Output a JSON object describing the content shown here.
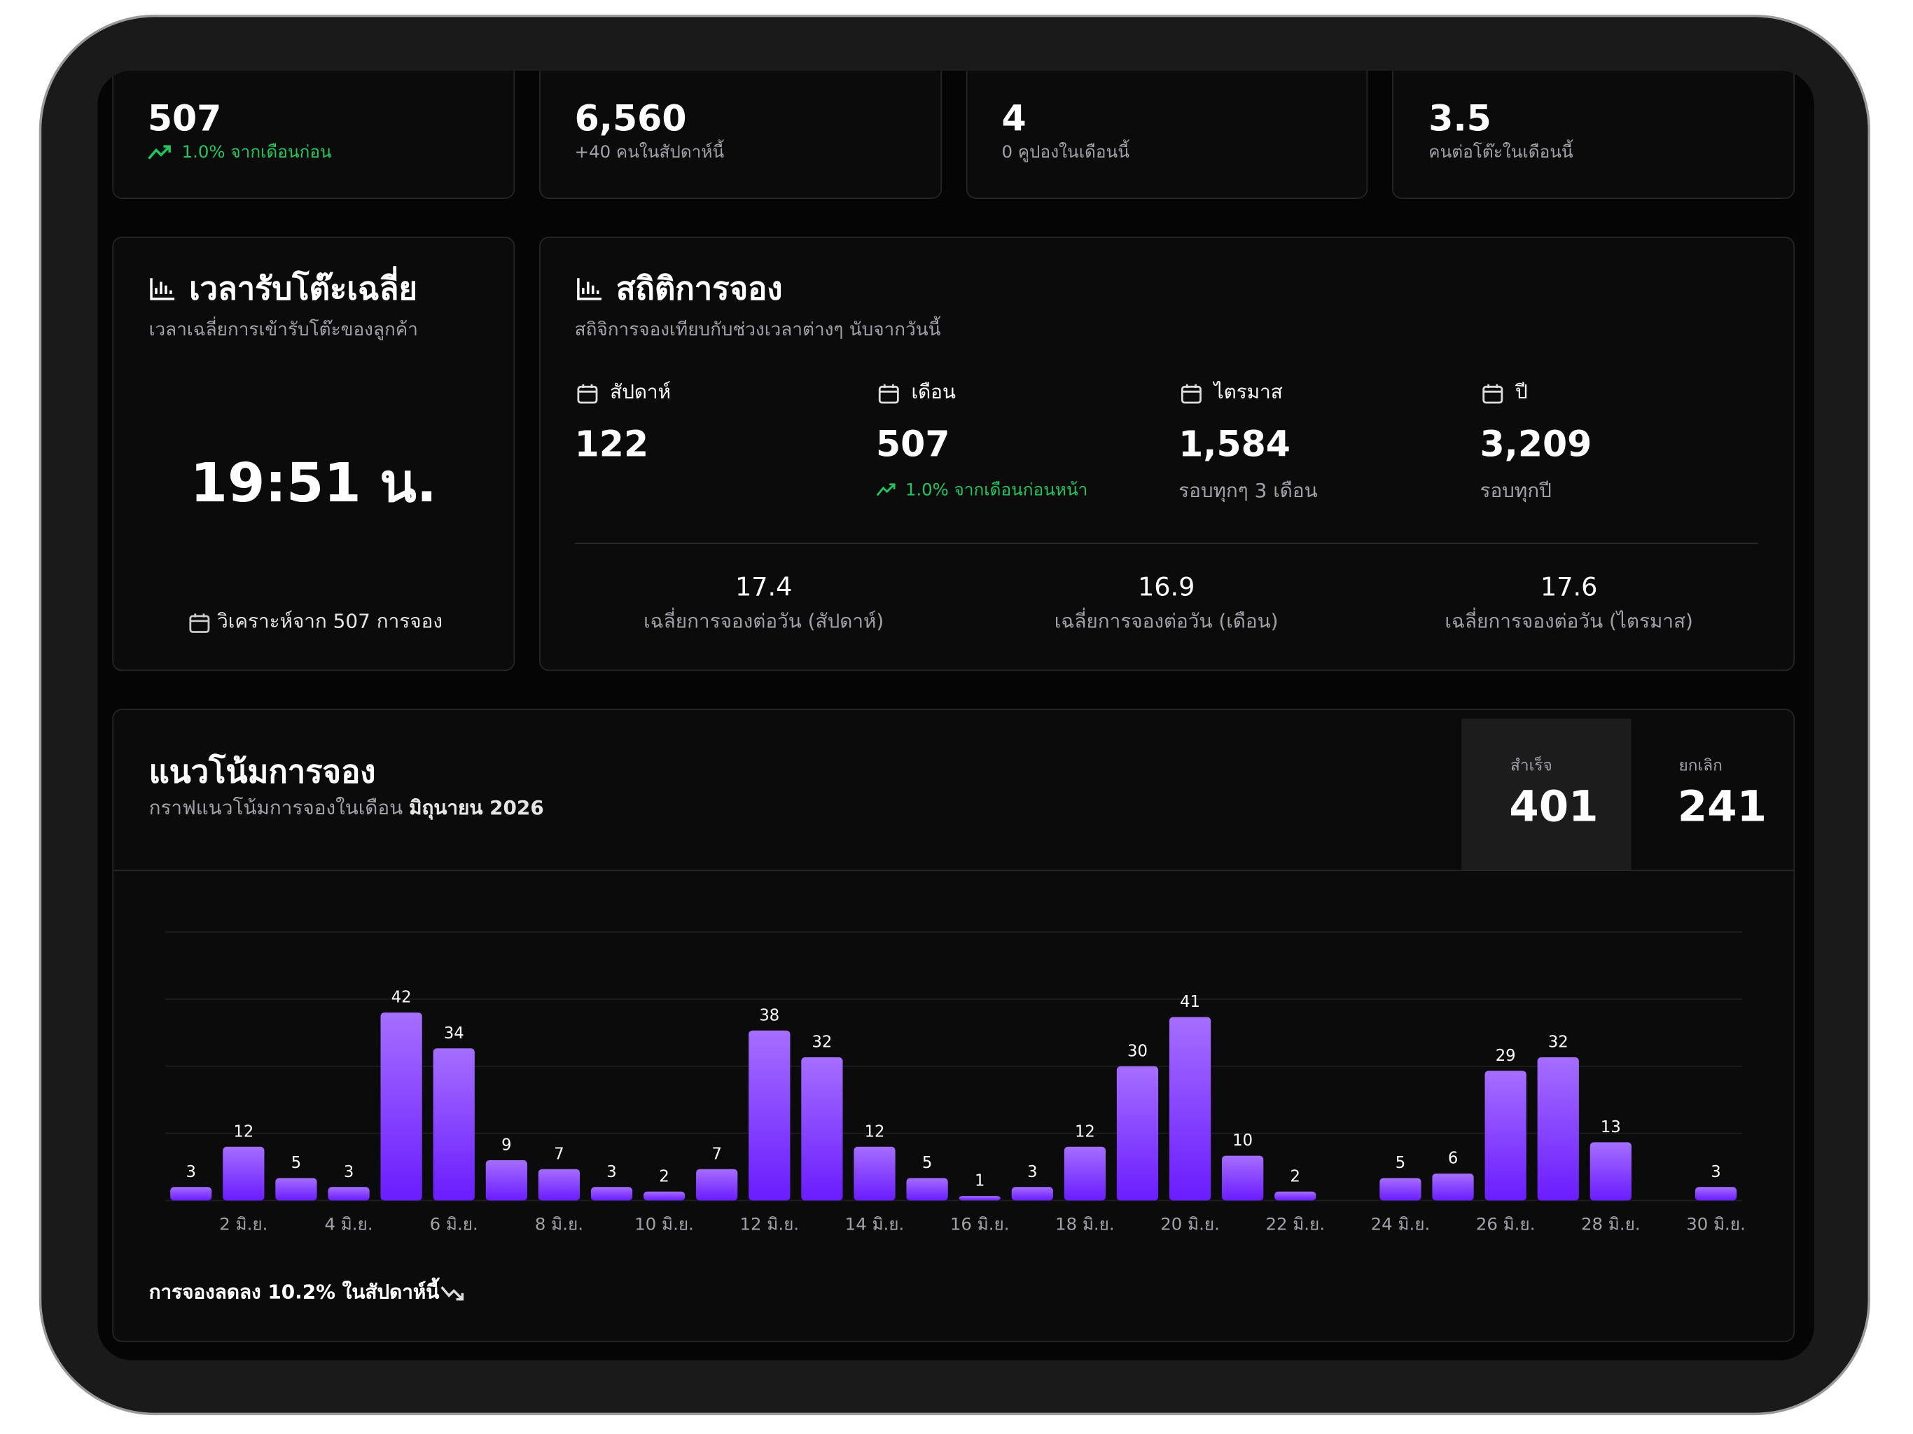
{
  "stat_cards": [
    {
      "value": "507",
      "note": "1.0% จากเดือนก่อน"
    },
    {
      "value": "6,560",
      "note": "+40 คนในสัปดาห์นี้"
    },
    {
      "value": "4",
      "note": "0 คูปองในเดือนนี้"
    },
    {
      "value": "3.5",
      "note": "คนต่อโต๊ะในเดือนนี้"
    }
  ],
  "avg_time": {
    "title": "เวลารับโต๊ะเฉลี่ย",
    "subtitle": "เวลาเฉลี่ยการเข้ารับโต๊ะของลูกค้า",
    "value": "19:51 น.",
    "footer": "วิเคราะห์จาก 507 การจอง"
  },
  "booking_stats": {
    "title": "สถิติการจอง",
    "subtitle": "สถิจิการจองเทียบกับช่วงเวลาต่างๆ นับจากวันนี้",
    "periods": [
      {
        "label": "สัปดาห์",
        "value": "122"
      },
      {
        "label": "เดือน",
        "value": "507",
        "note": "1.0% จากเดือนก่อนหน้า"
      },
      {
        "label": "ไตรมาส",
        "value": "1,584",
        "note": "รอบทุกๆ 3 เดือน"
      },
      {
        "label": "ปี",
        "value": "3,209",
        "note": "รอบทุกปี"
      }
    ],
    "averages": [
      {
        "value": "17.4",
        "label": "เฉลี่ยการจองต่อวัน (สัปดาห์)"
      },
      {
        "value": "16.9",
        "label": "เฉลี่ยการจองต่อวัน (เดือน)"
      },
      {
        "value": "17.6",
        "label": "เฉลี่ยการจองต่อวัน (ไตรมาส)"
      }
    ]
  },
  "trend": {
    "title": "แนวโน้มการจอง",
    "subtitle": "กราฟแนวโน้มการจองในเดือน",
    "month": "มิถุนายน 2026",
    "success_label": "สำเร็จ",
    "success_value": "401",
    "cancel_label": "ยกเลิก",
    "cancel_value": "241",
    "footer": "การจองลดลง 10.2% ในสัปดาห์นี้"
  },
  "chart_data": {
    "type": "bar",
    "categories": [
      null,
      "2 มิ.ย.",
      null,
      "4 มิ.ย.",
      null,
      "6 มิ.ย.",
      null,
      "8 มิ.ย.",
      null,
      "10 มิ.ย.",
      null,
      "12 มิ.ย.",
      null,
      "14 มิ.ย.",
      null,
      "16 มิ.ย.",
      null,
      "18 มิ.ย.",
      null,
      "20 มิ.ย.",
      null,
      "22 มิ.ย.",
      null,
      "24 มิ.ย.",
      null,
      "26 มิ.ย.",
      null,
      "28 มิ.ย.",
      null,
      "30 มิ.ย."
    ],
    "values": [
      3,
      12,
      5,
      3,
      42,
      34,
      9,
      7,
      3,
      2,
      7,
      38,
      32,
      12,
      5,
      1,
      3,
      12,
      30,
      41,
      10,
      2,
      null,
      5,
      6,
      29,
      32,
      13,
      null,
      3
    ],
    "colors": [
      "#a56eff",
      "#6a1cff"
    ],
    "ylim": [
      0,
      60
    ],
    "grid_values": [
      0,
      15,
      30,
      45,
      60
    ],
    "grid": true
  }
}
